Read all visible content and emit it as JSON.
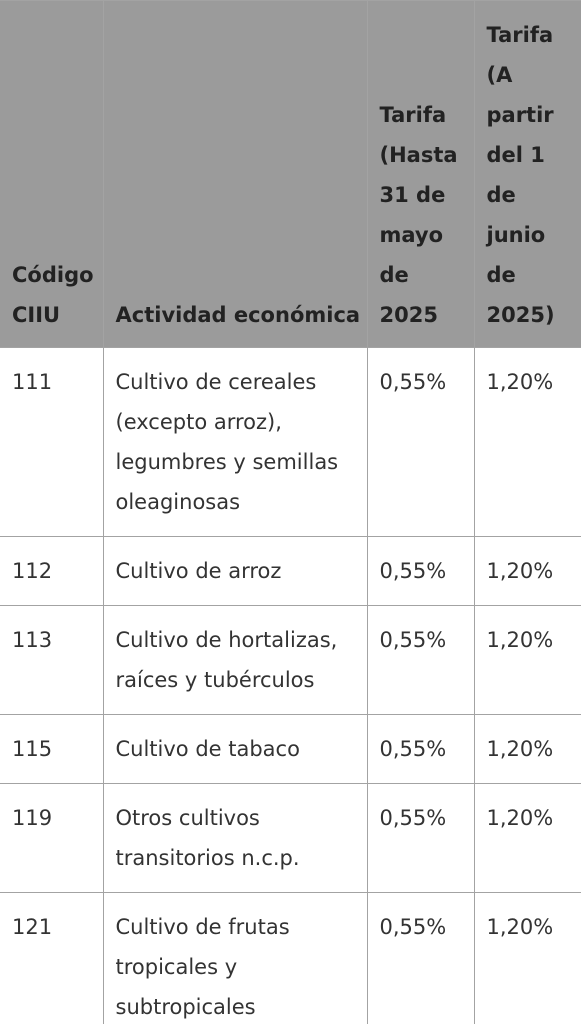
{
  "table": {
    "headers": [
      "Código CIIU",
      "Actividad económica",
      "Tarifa (Hasta 31 de mayo de 2025",
      "Tarifa (A partir del 1 de junio de 2025)"
    ],
    "rows": [
      {
        "code": "111",
        "activity": "Cultivo de cereales (excepto arroz), legumbres y semillas oleaginosas",
        "rate_until": "0,55%",
        "rate_from": "1,20%"
      },
      {
        "code": "112",
        "activity": "Cultivo de arroz",
        "rate_until": "0,55%",
        "rate_from": "1,20%"
      },
      {
        "code": "113",
        "activity": "Cultivo de hortalizas, raíces y tubérculos",
        "rate_until": "0,55%",
        "rate_from": "1,20%"
      },
      {
        "code": "115",
        "activity": "Cultivo de tabaco",
        "rate_until": "0,55%",
        "rate_from": "1,20%"
      },
      {
        "code": "119",
        "activity": "Otros cultivos transitorios n.c.p.",
        "rate_until": "0,55%",
        "rate_from": "1,20%"
      },
      {
        "code": "121",
        "activity": "Cultivo de frutas tropicales y subtropicales",
        "rate_until": "0,55%",
        "rate_from": "1,20%"
      }
    ]
  }
}
